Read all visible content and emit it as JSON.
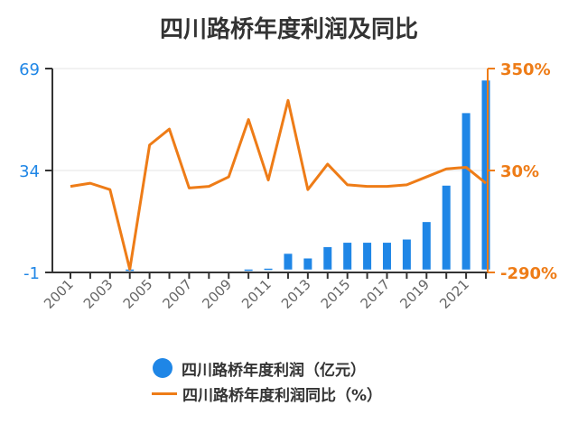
{
  "chart_data": {
    "type": "bar+line",
    "title": "四川路桥年度利润及同比",
    "categories": [
      "2001",
      "2002",
      "2003",
      "2004",
      "2005",
      "2006",
      "2007",
      "2008",
      "2009",
      "2010",
      "2011",
      "2012",
      "2013",
      "2014",
      "2015",
      "2016",
      "2017",
      "2018",
      "2019",
      "2020",
      "2021",
      "2022"
    ],
    "x_tick_labels": [
      "2001",
      "2003",
      "2005",
      "2007",
      "2009",
      "2011",
      "2013",
      "2015",
      "2017",
      "2019",
      "2021"
    ],
    "series": [
      {
        "name": "四川路桥年度利润（亿元）",
        "type": "bar",
        "axis": "left",
        "color": "#1f86e6",
        "values": [
          0,
          0,
          0,
          -0.5,
          0,
          0,
          0,
          0,
          0,
          -0.4,
          0.3,
          5.4,
          3.8,
          7.7,
          9.2,
          9.2,
          9.2,
          10.3,
          16.3,
          28.8,
          53.7,
          64.9
        ]
      },
      {
        "name": "四川路桥年度利润同比（%）",
        "type": "line",
        "axis": "right",
        "color": "#ee7c17",
        "values": [
          -20,
          -10,
          -30,
          -280,
          110,
          160,
          -25,
          -20,
          10,
          190,
          0,
          250,
          -30,
          50,
          -15,
          -20,
          -20,
          -15,
          10,
          35,
          40,
          -10
        ]
      }
    ],
    "left_axis": {
      "ticks": [
        "69",
        "34",
        "-1"
      ],
      "min": -1,
      "max": 69,
      "color": "#1f86e6"
    },
    "right_axis": {
      "ticks": [
        "350%",
        "30%",
        "-290%"
      ],
      "min": -290,
      "max": 350,
      "color": "#ee7c17"
    },
    "grid": true,
    "legend_position": "bottom"
  }
}
